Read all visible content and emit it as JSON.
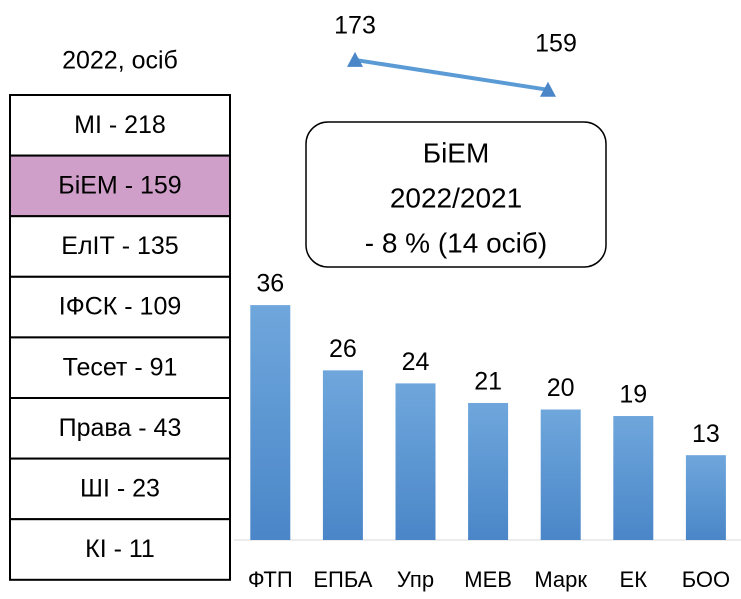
{
  "table": {
    "title": "2022, осіб",
    "rows": [
      "МІ - 218",
      "БіЕМ - 159",
      "ЕлІТ - 135",
      "ІФСК - 109",
      "Тесет - 91",
      "Права - 43",
      "ШІ - 23",
      "КІ - 11"
    ]
  },
  "chart_data": [
    {
      "type": "bar",
      "categories": [
        "ФТП",
        "ЕПБА",
        "Упр",
        "МЕВ",
        "Марк",
        "ЕК",
        "БОО"
      ],
      "values": [
        36,
        26,
        24,
        21,
        20,
        19,
        13
      ],
      "color": "#5b9bd5",
      "ylim": [
        0,
        40
      ]
    },
    {
      "type": "line",
      "categories": [
        null,
        null
      ],
      "values": [
        173,
        159
      ],
      "color": "#5b9bd5",
      "ylim": [
        150,
        180
      ],
      "annotation": [
        "БіЕМ",
        "2022/2021",
        "- 8 % (14 осіб)"
      ]
    }
  ]
}
